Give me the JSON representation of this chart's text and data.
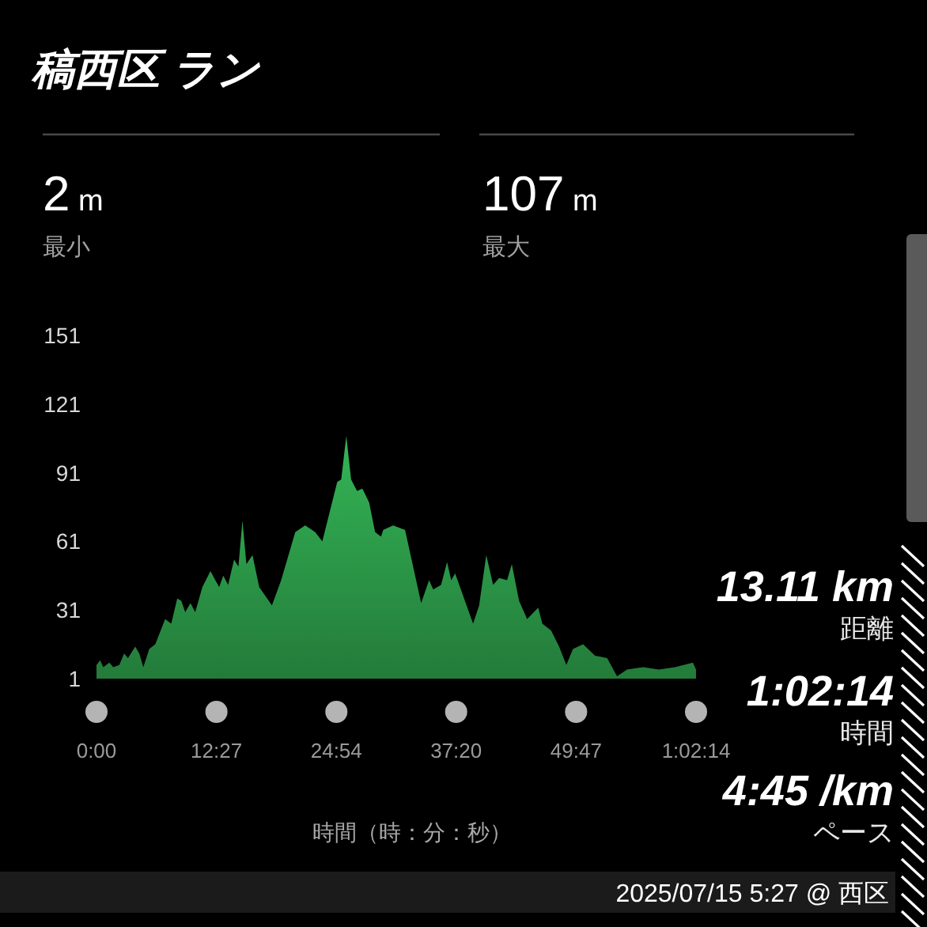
{
  "chart_data": {
    "type": "area",
    "title": "稿西区 ラン",
    "xlabel": "時間（時：分：秒）",
    "x": [
      0,
      0.37,
      0.71,
      1.33,
      1.74,
      2.37,
      2.86,
      3.27,
      4.02,
      4.44,
      4.86,
      5.48,
      6.1,
      7.13,
      7.76,
      8.38,
      8.8,
      9.21,
      9.75,
      10.25,
      10.99,
      11.83,
      12.33,
      12.74,
      13.16,
      13.66,
      14.28,
      14.73,
      15.15,
      15.56,
      16.19,
      16.89,
      17.72,
      18.21,
      19.17,
      20.63,
      21.66,
      22.7,
      23.44,
      24.99,
      25.4,
      25.93,
      26.43,
      27.05,
      27.6,
      28.3,
      28.92,
      29.54,
      29.76,
      30.79,
      32.03,
      33.7,
      34.52,
      34.95,
      35.77,
      36.39,
      36.82,
      37.23,
      39.09,
      39.72,
      40.46,
      41.17,
      41.79,
      42.62,
      43.11,
      43.86,
      44.7,
      45.85,
      46.28,
      47.19,
      48.02,
      48.77,
      49.46,
      50.51,
      51.75,
      53,
      54.03,
      55.07,
      56.74,
      58.39,
      60.05,
      61.91,
      62.23
    ],
    "values": [
      7,
      9,
      6,
      8,
      6,
      7,
      12,
      10,
      15,
      12,
      6,
      14,
      16,
      27,
      25,
      36,
      35,
      30,
      34,
      30,
      41,
      48,
      44,
      41,
      46,
      42,
      53,
      50,
      70,
      51,
      55,
      41,
      36,
      33,
      44,
      65,
      68,
      65,
      61,
      87,
      88,
      107,
      88,
      83,
      84,
      78,
      65,
      63,
      66,
      68,
      66,
      34,
      44,
      40,
      42,
      52,
      44,
      47,
      25,
      33,
      55,
      42,
      45,
      44,
      51,
      35,
      27,
      32,
      25,
      22,
      15,
      7,
      14,
      16,
      11,
      10,
      2,
      5,
      6,
      5,
      6,
      8,
      5
    ],
    "color": "#34b556",
    "xlim": [
      0,
      62.2333
    ],
    "xticks": [
      {
        "value": 0,
        "label": "0:00"
      },
      {
        "value": 12.45,
        "label": "12:27"
      },
      {
        "value": 24.9,
        "label": "24:54"
      },
      {
        "value": 37.3333,
        "label": "37:20"
      },
      {
        "value": 49.7833,
        "label": "49:47"
      },
      {
        "value": 62.2333,
        "label": "1:02:14"
      }
    ],
    "ylim": [
      1,
      151
    ],
    "yticks": [
      1,
      31,
      61,
      91,
      121,
      151
    ],
    "annotations": [
      "2 m",
      "最小",
      "107 m",
      "最大",
      "13.11 km",
      "距離",
      "1:02:14",
      "時間",
      "4:45 /km",
      "ペース",
      "2025/07/15 5:27 @ 西区"
    ]
  }
}
